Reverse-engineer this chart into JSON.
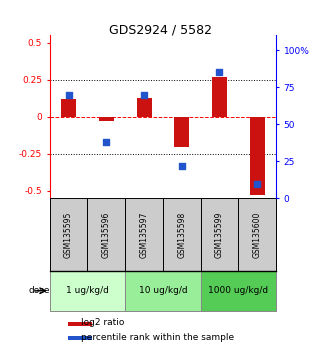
{
  "title": "GDS2924 / 5582",
  "samples": [
    "GSM135595",
    "GSM135596",
    "GSM135597",
    "GSM135598",
    "GSM135599",
    "GSM135600"
  ],
  "log2_ratio": [
    0.12,
    -0.03,
    0.13,
    -0.2,
    0.27,
    -0.53
  ],
  "percentile_rank": [
    70,
    38,
    70,
    22,
    85,
    10
  ],
  "dose_groups": [
    {
      "label": "1 ug/kg/d",
      "samples": [
        0,
        1
      ],
      "color": "#ccffcc"
    },
    {
      "label": "10 ug/kg/d",
      "samples": [
        2,
        3
      ],
      "color": "#99ee99"
    },
    {
      "label": "1000 ug/kg/d",
      "samples": [
        4,
        5
      ],
      "color": "#55cc55"
    }
  ],
  "bar_color": "#cc1111",
  "dot_color": "#2255cc",
  "ylim_left": [
    -0.55,
    0.55
  ],
  "ylim_right": [
    0,
    110
  ],
  "yticks_left": [
    -0.5,
    -0.25,
    0,
    0.25,
    0.5
  ],
  "yticks_right": [
    0,
    25,
    50,
    75,
    100
  ],
  "hlines": [
    -0.25,
    0.0,
    0.25
  ],
  "hline_styles": [
    "dotted",
    "dashed",
    "dotted"
  ],
  "hline_colors": [
    "black",
    "red",
    "black"
  ],
  "bg_color": "#ffffff",
  "sample_box_color": "#cccccc",
  "dose_label": "dose",
  "legend_log2": "log2 ratio",
  "legend_pct": "percentile rank within the sample"
}
